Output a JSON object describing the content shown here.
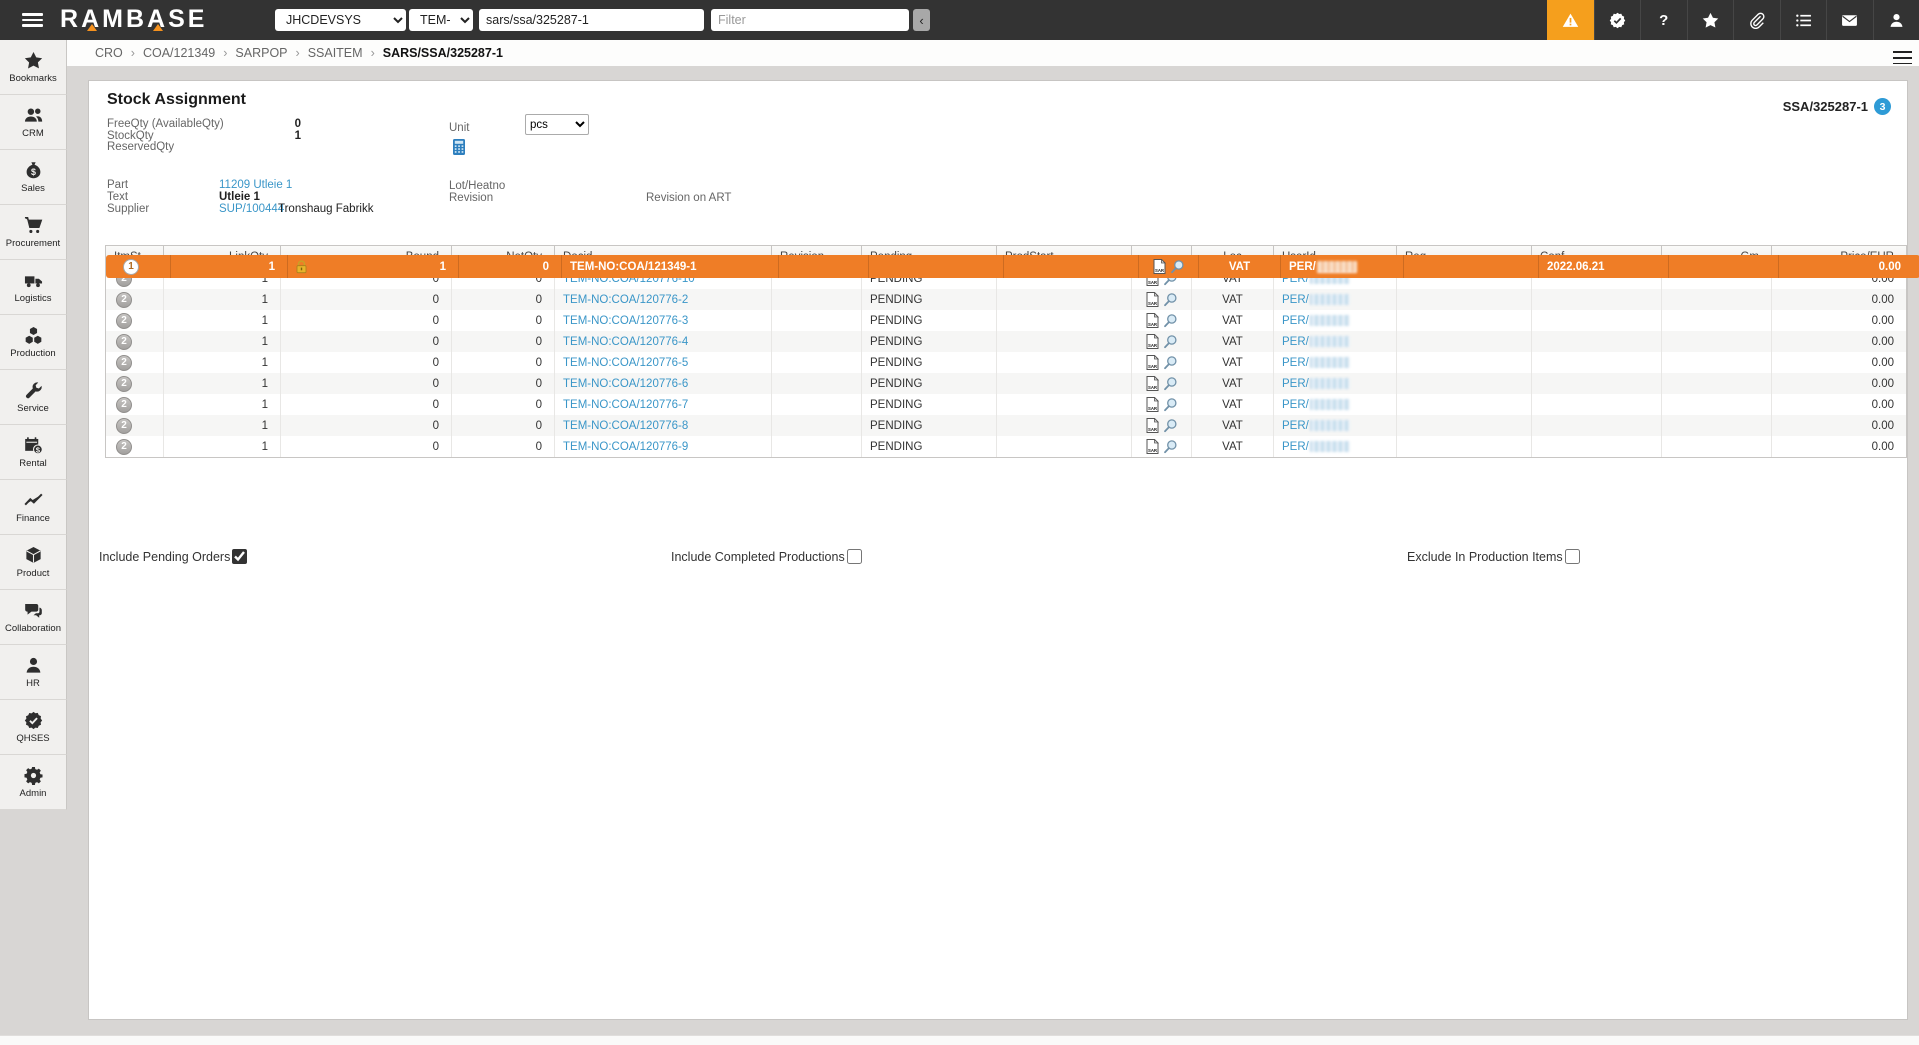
{
  "topbar": {
    "logo": "RAMBASE",
    "system_select": "JHCDEVSYS",
    "db_select": "TEM-NO",
    "search_value": "sars/ssa/325287-1",
    "filter_placeholder": "Filter",
    "collapse_label": "‹",
    "icons": [
      "alert-triangle-icon",
      "seal-check-icon",
      "help-icon",
      "favorites-star-icon",
      "paperclip-icon",
      "task-list-icon",
      "mail-icon",
      "user-icon"
    ]
  },
  "breadcrumb": {
    "items": [
      "CRO",
      "COA/121349",
      "SARPOP",
      "SSAITEM"
    ],
    "current": "SARS/SSA/325287-1",
    "separator": "›"
  },
  "sidebar": {
    "items": [
      {
        "label": "Bookmarks",
        "icon": "star-icon"
      },
      {
        "label": "CRM",
        "icon": "users-icon"
      },
      {
        "label": "Sales",
        "icon": "money-bag-icon"
      },
      {
        "label": "Procurement",
        "icon": "cart-icon"
      },
      {
        "label": "Logistics",
        "icon": "truck-icon"
      },
      {
        "label": "Production",
        "icon": "cubes-icon"
      },
      {
        "label": "Service",
        "icon": "wrench-icon"
      },
      {
        "label": "Rental",
        "icon": "calendar-dollar-icon"
      },
      {
        "label": "Finance",
        "icon": "chart-line-icon"
      },
      {
        "label": "Product",
        "icon": "cube-icon"
      },
      {
        "label": "Collaboration",
        "icon": "chat-bubbles-icon"
      },
      {
        "label": "HR",
        "icon": "person-icon"
      },
      {
        "label": "QHSES",
        "icon": "seal-check-icon"
      },
      {
        "label": "Admin",
        "icon": "gear-icon"
      }
    ]
  },
  "page": {
    "title": "Stock Assignment",
    "doc_ref": "SSA/325287-1",
    "doc_badge": "3",
    "fields": {
      "freeqty_label": "FreeQty (AvailableQty)",
      "freeqty_value": "0",
      "stockqty_label": "StockQty",
      "stockqty_value": "1",
      "reservedqty_label": "ReservedQty",
      "reservedqty_value": "",
      "unit_label": "Unit",
      "unit_value": "pcs",
      "part_label": "Part",
      "part_value": "11209 Utleie 1",
      "text_label": "Text",
      "text_value": "Utleie 1",
      "supplier_label": "Supplier",
      "supplier_link": "SUP/100444",
      "supplier_name": "Tronshaug Fabrikk",
      "lot_label": "Lot/Heatno",
      "revision_label": "Revision",
      "revision_on_art_label": "Revision on ART"
    }
  },
  "table": {
    "columns": [
      "ItmSt",
      "LinkQty",
      "Bound",
      "NetQty",
      "Docid",
      "Revision",
      "Pending",
      "ProdStart",
      "",
      "Loc",
      "UserId",
      "Req",
      "Conf",
      "Gm",
      "Price/EUR"
    ],
    "rows": [
      {
        "itmst": "2",
        "linkqty": "1",
        "bound": "0",
        "netqty": "0",
        "docid": "TEM-NO:COA/120776-10",
        "revision": "",
        "pending": "PENDING",
        "prodstart": "",
        "loc": "VAT",
        "userid_prefix": "PER/",
        "userid_redacted": true,
        "req": "",
        "conf": "",
        "gm": "",
        "price": "0.00",
        "selected": false,
        "locked": false
      },
      {
        "itmst": "2",
        "linkqty": "1",
        "bound": "0",
        "netqty": "0",
        "docid": "TEM-NO:COA/120776-2",
        "revision": "",
        "pending": "PENDING",
        "prodstart": "",
        "loc": "VAT",
        "userid_prefix": "PER/",
        "userid_redacted": true,
        "req": "",
        "conf": "",
        "gm": "",
        "price": "0.00",
        "selected": false,
        "locked": false
      },
      {
        "itmst": "2",
        "linkqty": "1",
        "bound": "0",
        "netqty": "0",
        "docid": "TEM-NO:COA/120776-3",
        "revision": "",
        "pending": "PENDING",
        "prodstart": "",
        "loc": "VAT",
        "userid_prefix": "PER/",
        "userid_redacted": true,
        "req": "",
        "conf": "",
        "gm": "",
        "price": "0.00",
        "selected": false,
        "locked": false
      },
      {
        "itmst": "2",
        "linkqty": "1",
        "bound": "0",
        "netqty": "0",
        "docid": "TEM-NO:COA/120776-4",
        "revision": "",
        "pending": "PENDING",
        "prodstart": "",
        "loc": "VAT",
        "userid_prefix": "PER/",
        "userid_redacted": true,
        "req": "",
        "conf": "",
        "gm": "",
        "price": "0.00",
        "selected": false,
        "locked": false
      },
      {
        "itmst": "2",
        "linkqty": "1",
        "bound": "0",
        "netqty": "0",
        "docid": "TEM-NO:COA/120776-5",
        "revision": "",
        "pending": "PENDING",
        "prodstart": "",
        "loc": "VAT",
        "userid_prefix": "PER/",
        "userid_redacted": true,
        "req": "",
        "conf": "",
        "gm": "",
        "price": "0.00",
        "selected": false,
        "locked": false
      },
      {
        "itmst": "2",
        "linkqty": "1",
        "bound": "0",
        "netqty": "0",
        "docid": "TEM-NO:COA/120776-6",
        "revision": "",
        "pending": "PENDING",
        "prodstart": "",
        "loc": "VAT",
        "userid_prefix": "PER/",
        "userid_redacted": true,
        "req": "",
        "conf": "",
        "gm": "",
        "price": "0.00",
        "selected": false,
        "locked": false
      },
      {
        "itmst": "2",
        "linkqty": "1",
        "bound": "0",
        "netqty": "0",
        "docid": "TEM-NO:COA/120776-7",
        "revision": "",
        "pending": "PENDING",
        "prodstart": "",
        "loc": "VAT",
        "userid_prefix": "PER/",
        "userid_redacted": true,
        "req": "",
        "conf": "",
        "gm": "",
        "price": "0.00",
        "selected": false,
        "locked": false
      },
      {
        "itmst": "2",
        "linkqty": "1",
        "bound": "0",
        "netqty": "0",
        "docid": "TEM-NO:COA/120776-8",
        "revision": "",
        "pending": "PENDING",
        "prodstart": "",
        "loc": "VAT",
        "userid_prefix": "PER/",
        "userid_redacted": true,
        "req": "",
        "conf": "",
        "gm": "",
        "price": "0.00",
        "selected": false,
        "locked": false
      },
      {
        "itmst": "2",
        "linkqty": "1",
        "bound": "0",
        "netqty": "0",
        "docid": "TEM-NO:COA/120776-9",
        "revision": "",
        "pending": "PENDING",
        "prodstart": "",
        "loc": "VAT",
        "userid_prefix": "PER/",
        "userid_redacted": true,
        "req": "",
        "conf": "",
        "gm": "",
        "price": "0.00",
        "selected": false,
        "locked": false
      },
      {
        "itmst": "1",
        "linkqty": "1",
        "bound": "1",
        "netqty": "0",
        "docid": "TEM-NO:COA/121349-1",
        "revision": "",
        "pending": "",
        "prodstart": "",
        "loc": "VAT",
        "userid_prefix": "PER/",
        "userid_redacted": true,
        "req": "",
        "conf": "2022.06.21",
        "gm": "",
        "price": "0.00",
        "selected": true,
        "locked": true
      }
    ]
  },
  "footer": {
    "checkboxes": [
      {
        "label": "Include Pending Orders",
        "checked": true
      },
      {
        "label": "Include Completed Productions",
        "checked": false
      },
      {
        "label": "Exclude In Production Items",
        "checked": false
      }
    ]
  },
  "colors": {
    "topbar_bg": "#333333",
    "accent_orange": "#F59F1D",
    "logo_orange": "#F6921E",
    "selected_row_orange": "#EF7D26",
    "link_blue": "#3A96C8",
    "badge_blue": "#2E9BD6"
  }
}
